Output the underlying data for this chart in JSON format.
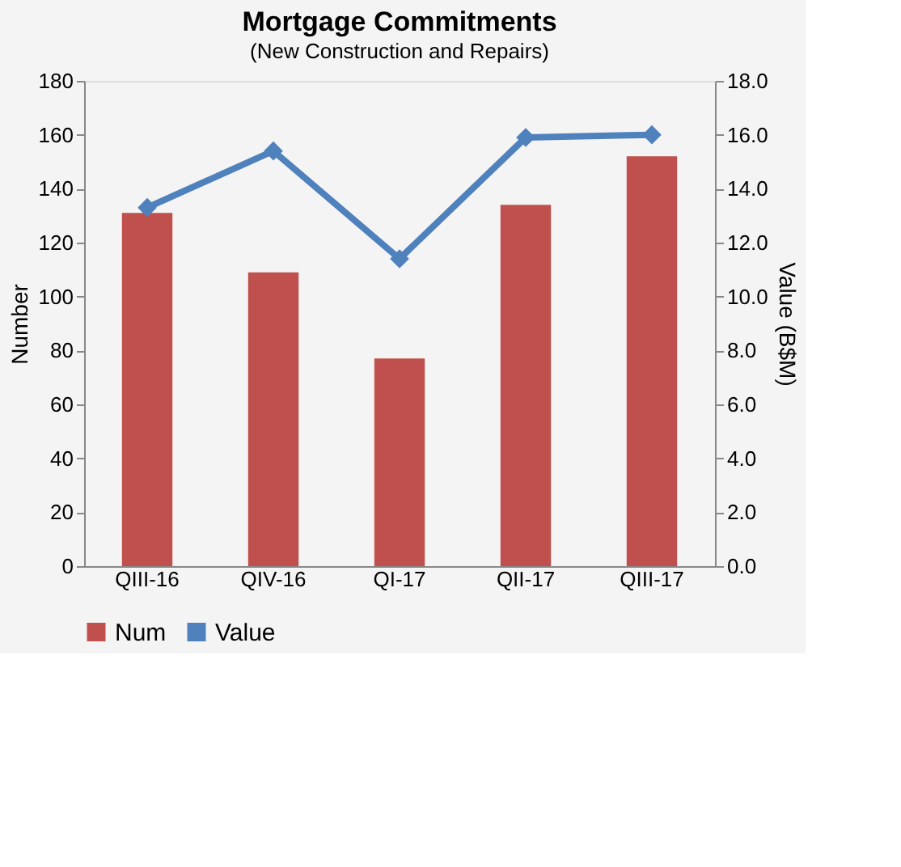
{
  "chart_data": {
    "type": "bar",
    "title": "Mortgage Commitments",
    "subtitle": "(New Construction and Repairs)",
    "categories": [
      "QIII-16",
      "QIV-16",
      "QI-17",
      "QII-17",
      "QIII-17"
    ],
    "series": [
      {
        "name": "Num",
        "color": "#c0504d",
        "values": [
          131,
          109,
          77,
          134,
          152
        ]
      },
      {
        "name": "Value",
        "type": "line",
        "axis": "y2",
        "color": "#4f81bd",
        "values": [
          13.3,
          15.4,
          11.4,
          15.9,
          16.0
        ]
      }
    ],
    "ylabel": "Number",
    "y2label": "Value (B$M)",
    "ylim": [
      0,
      180
    ],
    "yticks": [
      0,
      20,
      40,
      60,
      80,
      100,
      120,
      140,
      160,
      180
    ],
    "y2lim": [
      0,
      18
    ],
    "y2ticks": [
      {
        "value": 0,
        "label": "0.0"
      },
      {
        "value": 2,
        "label": "2.0"
      },
      {
        "value": 4,
        "label": "4.0"
      },
      {
        "value": 6,
        "label": "6.0"
      },
      {
        "value": 8,
        "label": "8.0"
      },
      {
        "value": 10,
        "label": "10.0"
      },
      {
        "value": 12,
        "label": "12.0"
      },
      {
        "value": 14,
        "label": "14.0"
      },
      {
        "value": 16,
        "label": "16.0"
      },
      {
        "value": 18,
        "label": "18.0"
      }
    ],
    "marker": "diamond",
    "legend": "bottom",
    "grid": false
  }
}
